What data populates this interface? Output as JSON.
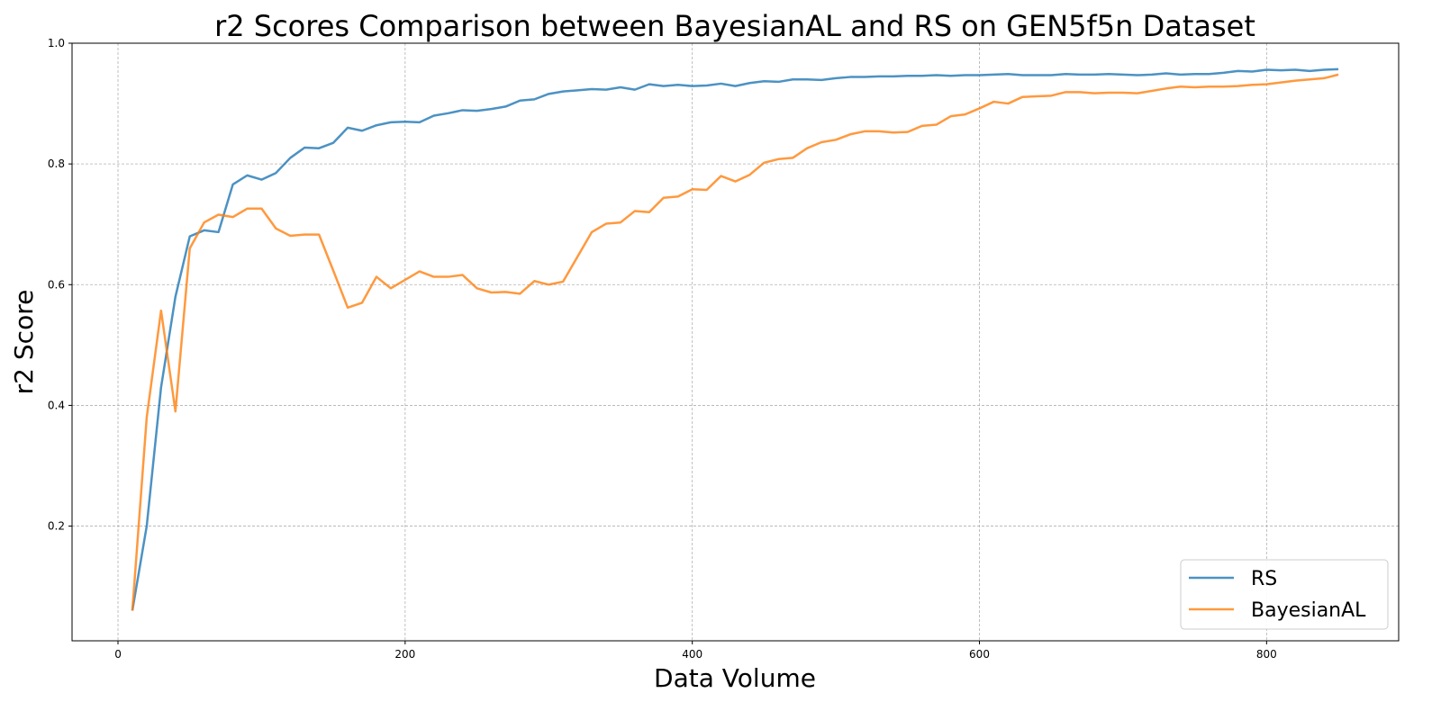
{
  "chart_data": {
    "type": "line",
    "title": "r2 Scores Comparison between BayesianAL and RS on GEN5f5n Dataset",
    "xlabel": "Data Volume",
    "ylabel": "r2 Score",
    "xlim": [
      -32,
      892
    ],
    "ylim": [
      0.01,
      1.0
    ],
    "xticks": [
      0,
      200,
      400,
      600,
      800
    ],
    "xtick_labels": [
      "0",
      "200",
      "400",
      "600",
      "800"
    ],
    "yticks": [
      0.2,
      0.4,
      0.6,
      0.8,
      1.0
    ],
    "ytick_labels": [
      "0.2",
      "0.4",
      "0.6",
      "0.8",
      "1.0"
    ],
    "grid": true,
    "legend_position": "bottom-right",
    "x": [
      10,
      20,
      30,
      40,
      50,
      60,
      70,
      80,
      90,
      100,
      110,
      120,
      130,
      140,
      150,
      160,
      170,
      180,
      190,
      200,
      210,
      220,
      230,
      240,
      250,
      260,
      270,
      280,
      290,
      300,
      310,
      320,
      330,
      340,
      350,
      360,
      370,
      380,
      390,
      400,
      410,
      420,
      430,
      440,
      450,
      460,
      470,
      480,
      490,
      500,
      510,
      520,
      530,
      540,
      550,
      560,
      570,
      580,
      590,
      600,
      610,
      620,
      630,
      640,
      650,
      660,
      670,
      680,
      690,
      700,
      710,
      720,
      730,
      740,
      750,
      760,
      770,
      780,
      790,
      800,
      810,
      820,
      830,
      840,
      850
    ],
    "series": [
      {
        "name": "RS",
        "color": "#1f77b4",
        "values": [
          0.06,
          0.2,
          0.43,
          0.58,
          0.68,
          0.69,
          0.687,
          0.766,
          0.781,
          0.774,
          0.785,
          0.81,
          0.827,
          0.826,
          0.835,
          0.86,
          0.855,
          0.864,
          0.869,
          0.87,
          0.869,
          0.88,
          0.884,
          0.889,
          0.888,
          0.891,
          0.895,
          0.905,
          0.907,
          0.916,
          0.92,
          0.922,
          0.924,
          0.923,
          0.927,
          0.923,
          0.932,
          0.929,
          0.931,
          0.929,
          0.93,
          0.933,
          0.929,
          0.934,
          0.937,
          0.936,
          0.94,
          0.94,
          0.939,
          0.942,
          0.944,
          0.944,
          0.945,
          0.945,
          0.946,
          0.946,
          0.947,
          0.946,
          0.947,
          0.947,
          0.948,
          0.949,
          0.947,
          0.947,
          0.947,
          0.949,
          0.948,
          0.948,
          0.949,
          0.948,
          0.947,
          0.948,
          0.95,
          0.948,
          0.949,
          0.949,
          0.951,
          0.954,
          0.953,
          0.956,
          0.955,
          0.956,
          0.954,
          0.956,
          0.957
        ]
      },
      {
        "name": "BayesianAL",
        "color": "#ff7f0e",
        "values": [
          0.06,
          0.38,
          0.557,
          0.39,
          0.66,
          0.703,
          0.716,
          0.712,
          0.726,
          0.726,
          0.693,
          0.681,
          0.683,
          0.683,
          0.623,
          0.562,
          0.57,
          0.613,
          0.594,
          0.608,
          0.622,
          0.613,
          0.613,
          0.616,
          0.594,
          0.587,
          0.588,
          0.585,
          0.606,
          0.6,
          0.605,
          0.646,
          0.687,
          0.701,
          0.703,
          0.722,
          0.72,
          0.744,
          0.746,
          0.758,
          0.757,
          0.78,
          0.771,
          0.782,
          0.802,
          0.808,
          0.81,
          0.826,
          0.836,
          0.84,
          0.849,
          0.854,
          0.854,
          0.852,
          0.853,
          0.863,
          0.865,
          0.879,
          0.882,
          0.892,
          0.903,
          0.9,
          0.911,
          0.912,
          0.913,
          0.919,
          0.919,
          0.917,
          0.918,
          0.918,
          0.917,
          0.921,
          0.925,
          0.928,
          0.927,
          0.928,
          0.928,
          0.929,
          0.931,
          0.932,
          0.935,
          0.938,
          0.94,
          0.942,
          0.948
        ]
      }
    ]
  }
}
